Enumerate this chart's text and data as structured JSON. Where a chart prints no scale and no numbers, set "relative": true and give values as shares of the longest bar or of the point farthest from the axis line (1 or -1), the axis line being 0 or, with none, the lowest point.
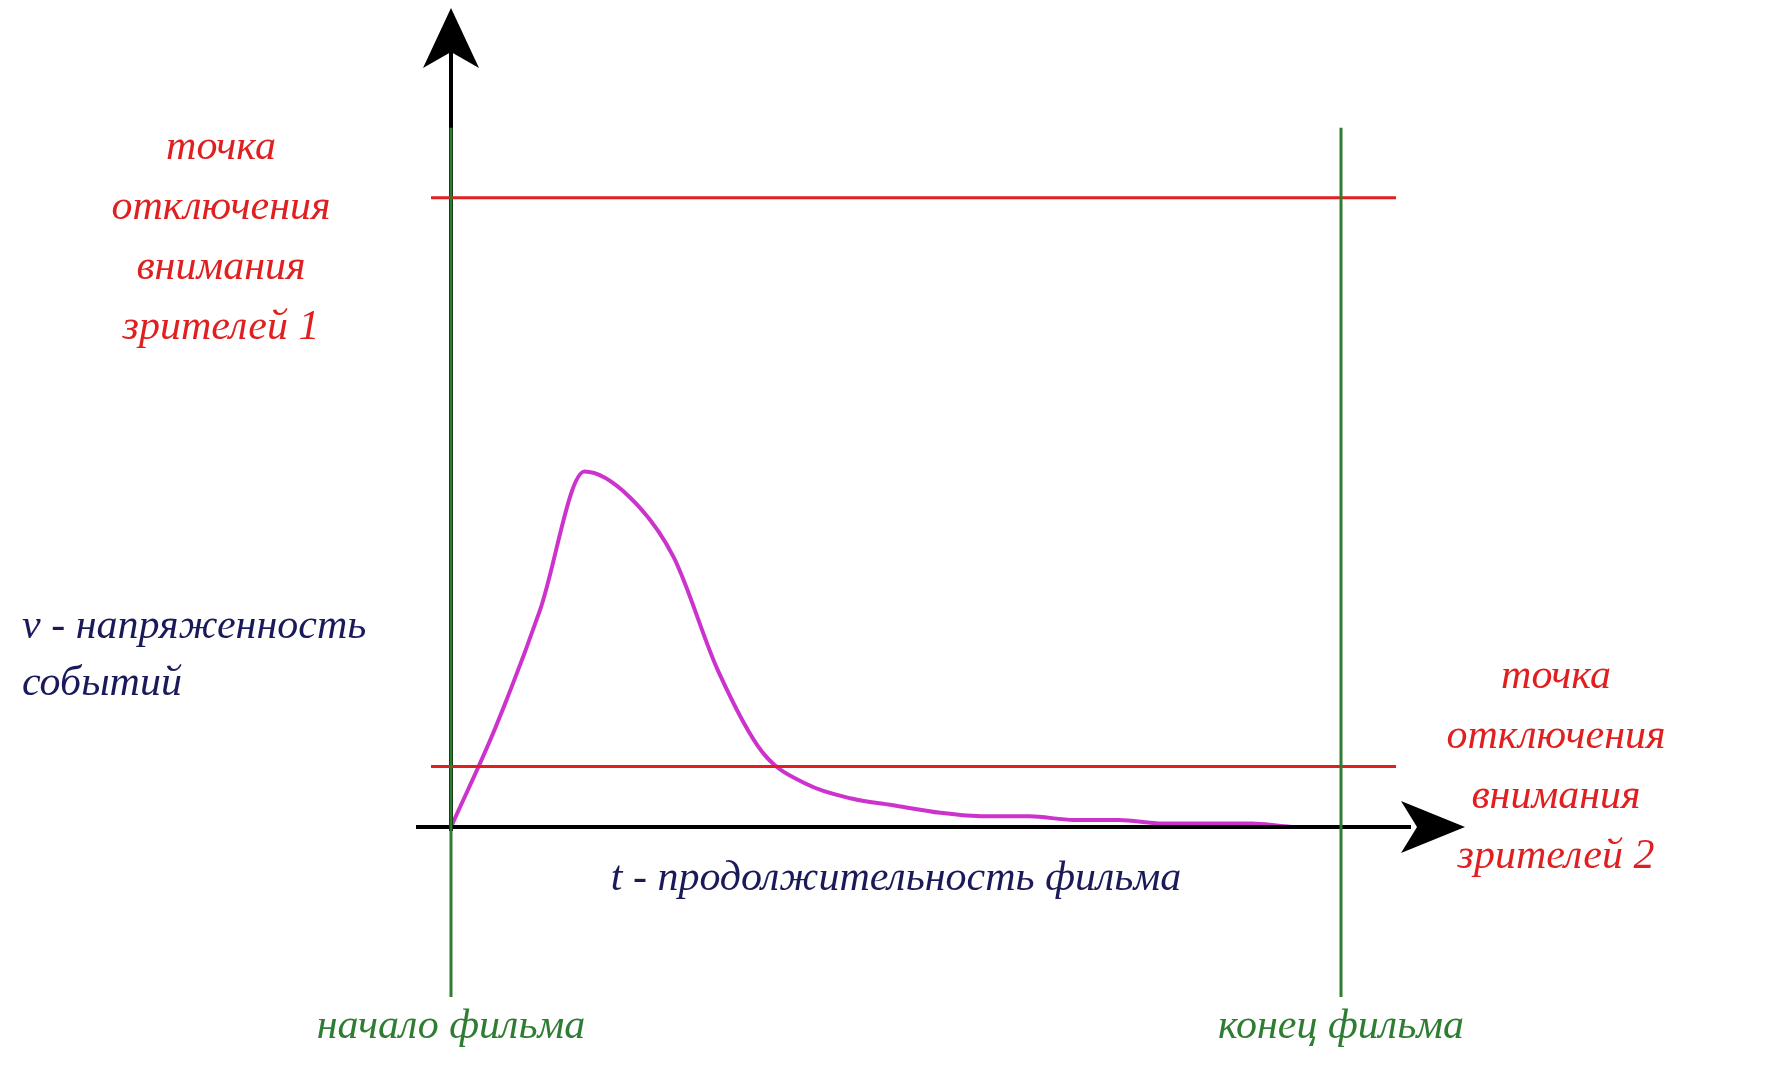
{
  "chart_data": {
    "type": "line",
    "relative": true,
    "xlabel": "t - продолжительность фильма",
    "ylabel": "v - напряженность событий",
    "categories": [
      null,
      null,
      null,
      null,
      null,
      null,
      null,
      null,
      null,
      null,
      null,
      null,
      null,
      null,
      null,
      null,
      null,
      null,
      null,
      null,
      null
    ],
    "series": [
      {
        "color": "#cc33cc",
        "values": [
          0,
          0.28,
          0.61,
          1,
          0.93,
          0.76,
          0.44,
          0.21,
          0.12,
          0.08,
          0.06,
          0.04,
          0.03,
          0.03,
          0.02,
          0.02,
          0.01,
          0.01,
          0.01,
          0,
          0
        ]
      }
    ],
    "ref_lines": [
      {
        "axis": "y",
        "value": 1.77,
        "label": "точка отключения внимания зрителей 1",
        "color": "#e02020"
      },
      {
        "axis": "y",
        "value": 0.17,
        "label": "точка отключения внимания зрителей 2",
        "color": "#e02020"
      }
    ],
    "annotations": [
      "начало фильма",
      "конец фильма"
    ],
    "legend": false,
    "marker": "none",
    "line_style": "solid"
  }
}
